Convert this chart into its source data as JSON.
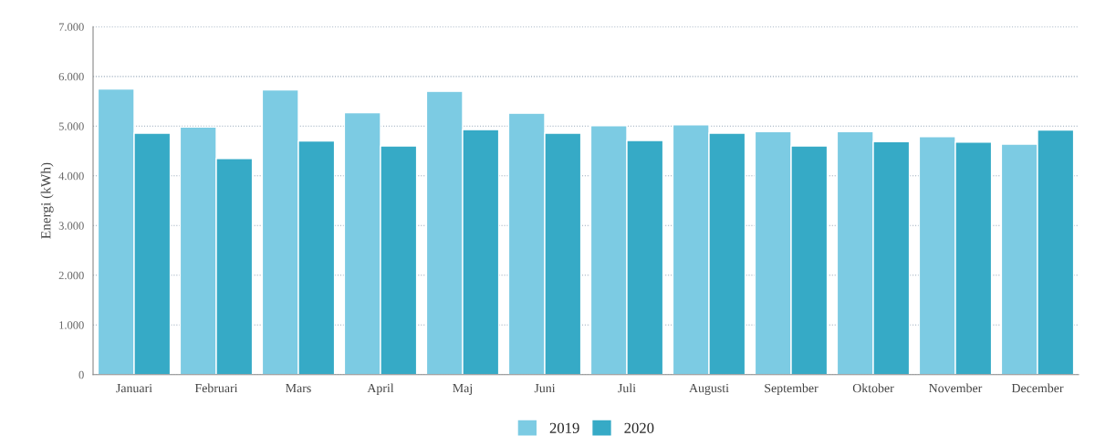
{
  "chart_data": {
    "type": "bar",
    "ylabel": "Energi (kWh)",
    "categories": [
      "Januari",
      "Februari",
      "Mars",
      "April",
      "Maj",
      "Juni",
      "Juli",
      "Augusti",
      "September",
      "Oktober",
      "November",
      "December"
    ],
    "series": [
      {
        "name": "2019",
        "color": "#7ccbe3",
        "values": [
          5750,
          4980,
          5730,
          5270,
          5700,
          5260,
          5010,
          5030,
          4890,
          4890,
          4790,
          4640
        ]
      },
      {
        "name": "2020",
        "color": "#36aac6",
        "values": [
          4860,
          4350,
          4700,
          4600,
          4930,
          4860,
          4710,
          4860,
          4600,
          4690,
          4680,
          4920
        ]
      }
    ],
    "ylim": [
      0,
      7000
    ],
    "yticks": [
      0,
      {
        "value": 1000,
        "label": "1.000"
      },
      {
        "value": 2000,
        "label": "2.000"
      },
      {
        "value": 3000,
        "label": "3.000"
      },
      {
        "value": 4000,
        "label": "4.000"
      },
      {
        "value": 5000,
        "label": "5.000"
      },
      {
        "value": 6000,
        "label": "6.000"
      },
      {
        "value": 7000,
        "label": "7.000"
      }
    ],
    "grid": "y",
    "legend": "bottom"
  }
}
